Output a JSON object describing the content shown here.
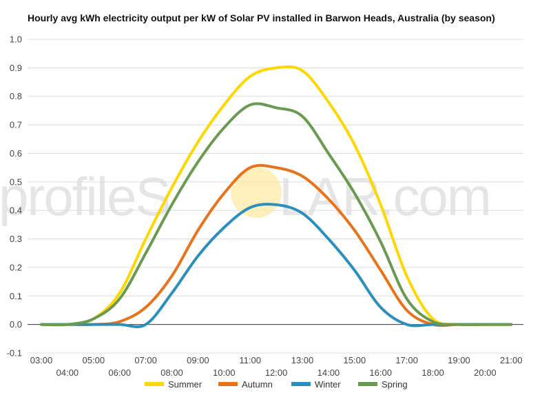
{
  "chart_data": {
    "type": "line",
    "title": "Hourly avg kWh electricity output per kW of Solar PV installed in Barwon Heads, Australia (by season)",
    "xlabel": "",
    "ylabel": "",
    "ylim": [
      -0.1,
      1.0
    ],
    "yticks": [
      "-0.1",
      "0.0",
      "0.1",
      "0.2",
      "0.3",
      "0.4",
      "0.5",
      "0.6",
      "0.7",
      "0.8",
      "0.9",
      "1.0"
    ],
    "x": [
      "03:00",
      "04:00",
      "05:00",
      "06:00",
      "07:00",
      "08:00",
      "09:00",
      "10:00",
      "11:00",
      "12:00",
      "13:00",
      "14:00",
      "15:00",
      "16:00",
      "17:00",
      "18:00",
      "19:00",
      "20:00",
      "21:00"
    ],
    "grid": true,
    "legend": "bottom",
    "series": [
      {
        "name": "Summer",
        "color": "#FFD700",
        "values": [
          0.0,
          0.0,
          0.02,
          0.11,
          0.3,
          0.48,
          0.64,
          0.77,
          0.87,
          0.9,
          0.89,
          0.78,
          0.63,
          0.42,
          0.17,
          0.02,
          0.0,
          0.0,
          0.0
        ]
      },
      {
        "name": "Autumn",
        "color": "#E8731A",
        "values": [
          0.0,
          0.0,
          0.0,
          0.01,
          0.06,
          0.17,
          0.33,
          0.46,
          0.55,
          0.55,
          0.52,
          0.44,
          0.33,
          0.19,
          0.05,
          0.0,
          0.0,
          0.0,
          0.0
        ]
      },
      {
        "name": "Winter",
        "color": "#2A8FBD",
        "values": [
          0.0,
          0.0,
          0.0,
          0.0,
          0.0,
          0.11,
          0.24,
          0.34,
          0.41,
          0.42,
          0.39,
          0.3,
          0.19,
          0.06,
          0.0,
          0.0,
          0.0,
          0.0,
          0.0
        ]
      },
      {
        "name": "Spring",
        "color": "#6A9A4F",
        "values": [
          0.0,
          0.0,
          0.02,
          0.09,
          0.25,
          0.42,
          0.57,
          0.69,
          0.77,
          0.76,
          0.73,
          0.6,
          0.46,
          0.29,
          0.09,
          0.01,
          0.0,
          0.0,
          0.0
        ]
      }
    ]
  },
  "watermark": {
    "text_left": "profileS",
    "text_right": "LAR.com",
    "sun_color": "#FFE8A0"
  }
}
